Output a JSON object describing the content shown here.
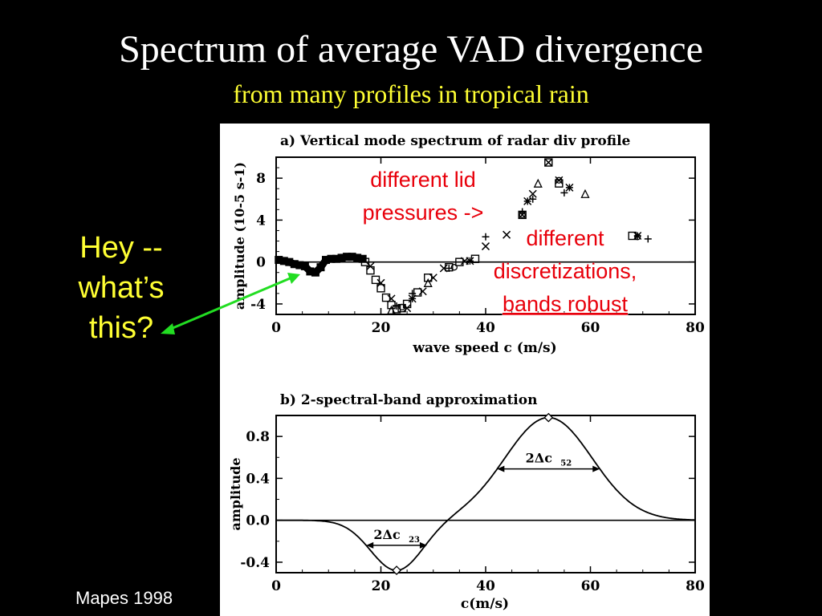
{
  "slide": {
    "title": "Spectrum of average VAD divergence",
    "subtitle": "from many profiles in tropical rain",
    "subtitle_color": "#ffff33",
    "callout": [
      "Hey --",
      "what’s",
      "this?"
    ],
    "callout_color": "#ffff33",
    "arrow_color": "#22dd22",
    "credit": "Mapes 1998"
  },
  "annotations": {
    "lid": [
      "different lid",
      "pressures ->"
    ],
    "disc": [
      "different",
      "discretizations,",
      "bands robust"
    ],
    "color": "#e8000b"
  },
  "chart_data": [
    {
      "type": "scatter",
      "title": "a) Vertical mode spectrum of radar div profile",
      "xlabel": "wave speed c (m/s)",
      "ylabel": "amplitude (10-5 s-1)",
      "xlim": [
        0,
        80
      ],
      "ylim": [
        -5,
        10
      ],
      "xticks": [
        0,
        20,
        40,
        60,
        80
      ],
      "yticks": [
        -4,
        0,
        4,
        8
      ],
      "zero_line": true,
      "dense_band": {
        "x": [
          0.5,
          1.5,
          2.5,
          3.5,
          4.5,
          5.5,
          6.5,
          7.5,
          8.5,
          9.5,
          10.5,
          11.5,
          12.5,
          13.5,
          14.5,
          15.5,
          16.5
        ],
        "y": [
          0.2,
          0.1,
          0.0,
          -0.2,
          -0.3,
          -0.4,
          -0.9,
          -1.0,
          -0.5,
          0.2,
          0.3,
          0.3,
          0.4,
          0.5,
          0.5,
          0.4,
          0.3
        ]
      },
      "series": [
        {
          "marker": "square",
          "x": [
            17,
            18,
            19,
            20,
            21,
            22,
            23,
            24,
            25,
            27,
            29,
            33,
            35,
            38,
            47,
            52,
            54,
            68
          ],
          "y": [
            0.0,
            -0.8,
            -1.7,
            -2.5,
            -3.4,
            -4.1,
            -4.5,
            -4.4,
            -4.0,
            -2.9,
            -1.5,
            -0.5,
            0.0,
            0.3,
            4.5,
            9.5,
            7.5,
            2.5
          ]
        },
        {
          "marker": "cross",
          "x": [
            18,
            20,
            22,
            25,
            28,
            30,
            32,
            36,
            40,
            44,
            47,
            49,
            52,
            54
          ],
          "y": [
            -0.4,
            -2.0,
            -3.5,
            -4.4,
            -2.8,
            -1.5,
            -0.6,
            0.1,
            1.5,
            2.6,
            4.5,
            6.5,
            9.5,
            7.8
          ]
        },
        {
          "marker": "plus",
          "x": [
            23,
            26,
            33,
            40,
            47,
            49,
            55,
            71
          ],
          "y": [
            -4.2,
            -3.0,
            -0.6,
            2.4,
            4.8,
            6.0,
            6.6,
            2.2
          ]
        },
        {
          "marker": "star",
          "x": [
            26,
            37,
            48,
            56,
            69
          ],
          "y": [
            -3.5,
            0.1,
            5.8,
            7.1,
            2.5
          ]
        },
        {
          "marker": "triangle",
          "x": [
            22,
            29,
            50,
            59
          ],
          "y": [
            -4.6,
            -2.0,
            7.5,
            6.5
          ]
        },
        {
          "marker": "circle",
          "x": [
            24,
            34,
            47,
            54,
            69
          ],
          "y": [
            -4.3,
            -0.5,
            4.5,
            7.8,
            2.4
          ]
        }
      ]
    },
    {
      "type": "line",
      "title": "b) 2-spectral-band approximation",
      "xlabel": "c(m/s)",
      "ylabel": "amplitude",
      "xlim": [
        0,
        80
      ],
      "ylim": [
        -0.5,
        1.0
      ],
      "xticks": [
        0,
        20,
        40,
        60,
        80
      ],
      "yticks": [
        -0.4,
        0.0,
        0.4,
        0.8
      ],
      "tick_labels_y": [
        "-0.4",
        "0.0",
        "0.4",
        "0.8"
      ],
      "zero_line": true,
      "bands": [
        {
          "center": 23,
          "peak": -0.48,
          "halfwidth": 5.8,
          "label_main": "2Δc",
          "label_sub": "23"
        },
        {
          "center": 52,
          "peak": 0.98,
          "halfwidth": 9.8,
          "label_main": "2Δc",
          "label_sub": "52"
        }
      ]
    }
  ]
}
